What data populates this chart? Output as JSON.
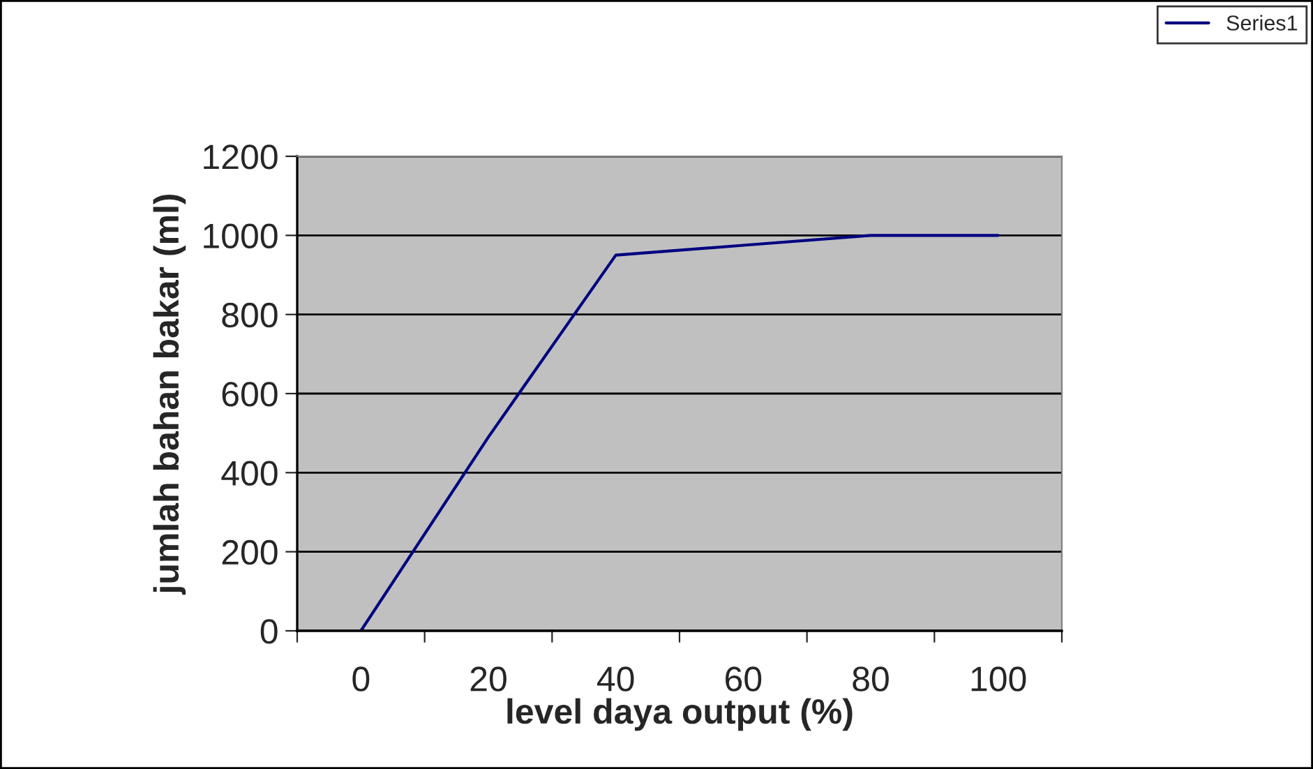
{
  "chart_data": {
    "type": "line",
    "xlabel": "level daya output (%)",
    "ylabel": "jumlah bahan bakar (ml)",
    "categories": [
      "0",
      "20",
      "40",
      "60",
      "80",
      "100"
    ],
    "series": [
      {
        "name": "Series1",
        "color": "#000080",
        "values": [
          0,
          490,
          950,
          975,
          1000,
          1000
        ]
      }
    ],
    "ylim": [
      0,
      1200
    ],
    "yticks": [
      0,
      200,
      400,
      600,
      800,
      1000,
      1200
    ],
    "grid": "y",
    "legend": "top right",
    "marker": "none",
    "line_style": "solid"
  }
}
